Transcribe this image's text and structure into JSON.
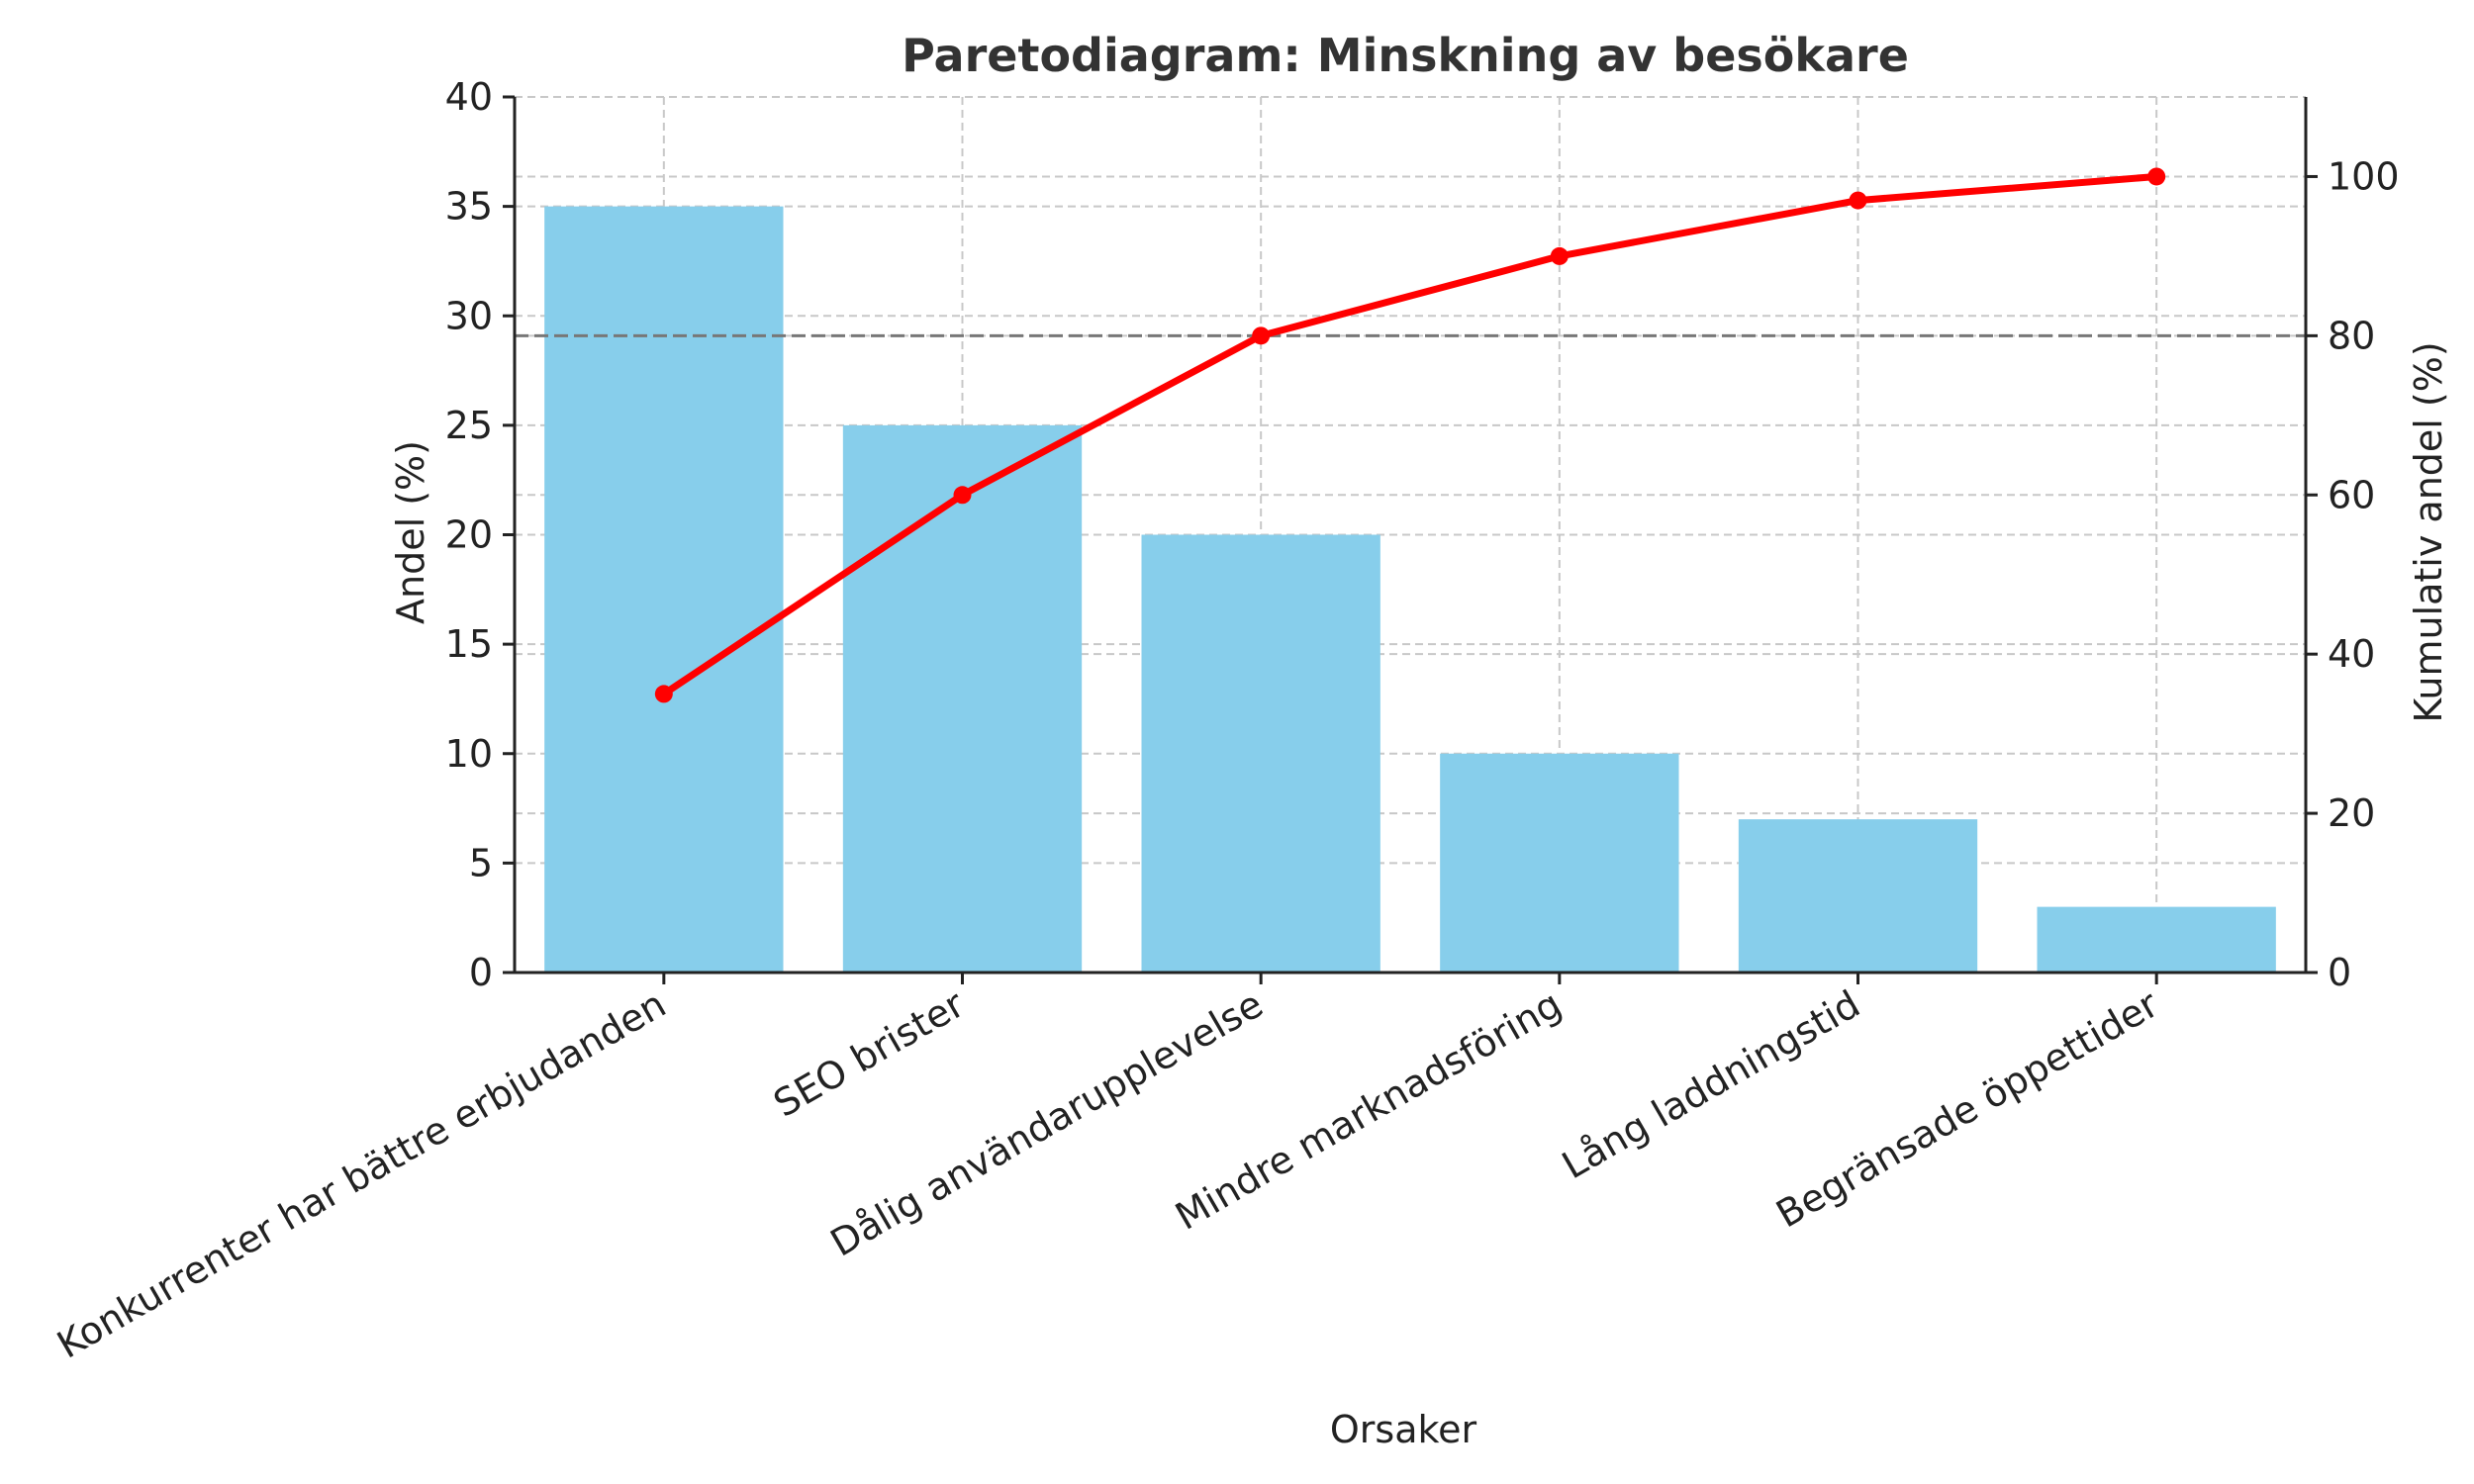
{
  "chart_data": {
    "type": "bar",
    "title": "Paretodiagram: Minskning av besökare",
    "xlabel": "Orsaker",
    "ylabel": "Andel (%)",
    "y2label": "Kumulativ andel (%)",
    "categories": [
      "Konkurrenter har bättre erbjudanden",
      "SEO brister",
      "Dålig användarupplevelse",
      "Mindre marknadsföring",
      "Lång laddningstid",
      "Begränsade öppettider"
    ],
    "series": [
      {
        "type": "bar",
        "axis": "left",
        "values": [
          35,
          25,
          20,
          10,
          7,
          3
        ],
        "color": "#87CEEB"
      },
      {
        "type": "line",
        "axis": "right",
        "values": [
          35,
          60,
          80,
          90,
          97,
          100
        ],
        "color": "#FF0000"
      }
    ],
    "reference_line": {
      "axis": "right",
      "value": 80,
      "style": "dashed",
      "color": "#777777"
    },
    "ylim": [
      0,
      40
    ],
    "y2lim": [
      0,
      110
    ],
    "yticks": [
      "0",
      "5",
      "10",
      "15",
      "20",
      "25",
      "30",
      "35",
      "40"
    ],
    "y2ticks": [
      "0",
      "20",
      "40",
      "60",
      "80",
      "100"
    ],
    "grid": true
  }
}
